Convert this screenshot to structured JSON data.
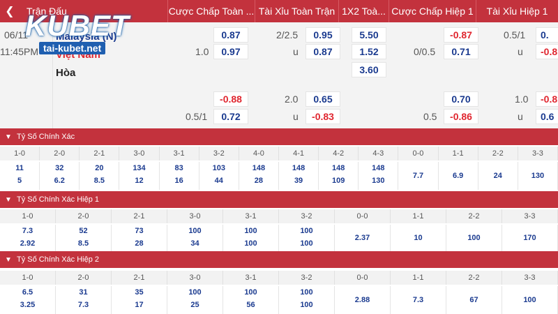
{
  "header": {
    "back_icon": "chevron-left-icon",
    "cols": [
      "Trận Đấu",
      "Cược Chấp Toàn ...",
      "Tài Xỉu Toàn Trận",
      "1X2 Toà...",
      "Cược Chấp Hiệp 1",
      "Tài Xỉu Hiệp 1"
    ]
  },
  "logo": {
    "brand": "KUBET",
    "url": "tai-kubet.net"
  },
  "match": {
    "date": "06/11",
    "time": "11:45PM",
    "home": "Malaysia (N)",
    "away": "Việt Nam",
    "draw": "Hòa",
    "ft_handicap": {
      "line1": "",
      "v1": "0.87",
      "line2": "1.0",
      "v2": "0.97"
    },
    "ft_ou": {
      "line1": "2/2.5",
      "v1": "0.95",
      "line2": "u",
      "v2": "0.87"
    },
    "x12": {
      "v1": "5.50",
      "v2": "1.52",
      "v3": "3.60"
    },
    "h1_handicap": {
      "line1": "",
      "v1": "-0.87",
      "line2": "0/0.5",
      "v2": "0.71"
    },
    "h1_ou": {
      "line1": "0.5/1",
      "v1": "0.",
      "line2": "u",
      "v2": "-0.8"
    },
    "alt_ft_handicap": {
      "line1": "",
      "v1": "-0.88",
      "line2": "0.5/1",
      "v2": "0.72"
    },
    "alt_ft_ou": {
      "line1": "2.0",
      "v1": "0.65",
      "line2": "u",
      "v2": "-0.83"
    },
    "alt_h1_handicap": {
      "line1": "",
      "v1": "0.70",
      "line2": "0.5",
      "v2": "-0.86"
    },
    "alt_h1_ou": {
      "line1": "1.0",
      "v1": "-0.8",
      "line2": "u",
      "v2": "0.6"
    }
  },
  "colors": {
    "accent": "#c3323d",
    "blue": "#1a3a8f",
    "red": "#e0262f"
  },
  "sections": [
    {
      "title": "Tỷ Số Chính Xác",
      "scores": [
        "1-0",
        "2-0",
        "2-1",
        "3-0",
        "3-1",
        "3-2",
        "4-0",
        "4-1",
        "4-2",
        "4-3",
        "0-0",
        "1-1",
        "2-2",
        "3-3"
      ],
      "top": [
        "11",
        "32",
        "20",
        "134",
        "83",
        "103",
        "148",
        "148",
        "148",
        "148",
        "7.7",
        "6.9",
        "24",
        "130"
      ],
      "bottom": [
        "5",
        "6.2",
        "8.5",
        "12",
        "16",
        "44",
        "28",
        "39",
        "109",
        "130",
        "",
        "",
        "",
        ""
      ]
    },
    {
      "title": "Tỷ Số Chính Xác Hiệp 1",
      "scores": [
        "1-0",
        "2-0",
        "2-1",
        "3-0",
        "3-1",
        "3-2",
        "0-0",
        "1-1",
        "2-2",
        "3-3"
      ],
      "top": [
        "7.3",
        "52",
        "73",
        "100",
        "100",
        "100",
        "2.37",
        "10",
        "100",
        "170"
      ],
      "bottom": [
        "2.92",
        "8.5",
        "28",
        "34",
        "100",
        "100",
        "",
        "",
        "",
        ""
      ]
    },
    {
      "title": "Tỷ Số Chính Xác Hiệp 2",
      "scores": [
        "1-0",
        "2-0",
        "2-1",
        "3-0",
        "3-1",
        "3-2",
        "0-0",
        "1-1",
        "2-2",
        "3-3"
      ],
      "top": [
        "6.5",
        "31",
        "35",
        "100",
        "100",
        "100",
        "2.88",
        "7.3",
        "67",
        "100"
      ],
      "bottom": [
        "3.25",
        "7.3",
        "17",
        "25",
        "56",
        "100",
        "",
        "",
        "",
        ""
      ]
    }
  ]
}
